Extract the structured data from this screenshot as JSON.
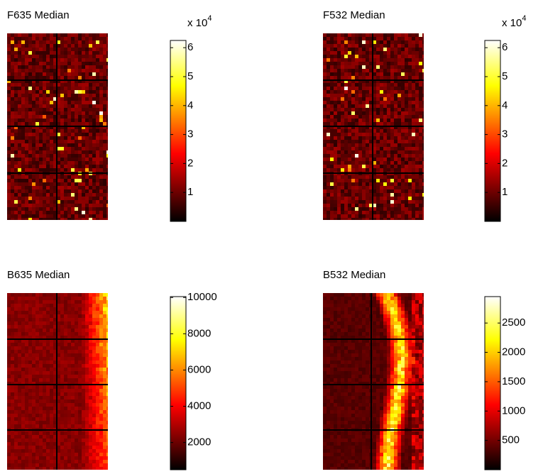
{
  "chart_data": [
    {
      "type": "heatmap",
      "title": "F635 Median",
      "colormap": "hot",
      "scale_text": "x 10",
      "scale_exponent": 4,
      "ylim": [
        0,
        6.25
      ],
      "yticks": [
        1,
        2,
        3,
        4,
        5,
        6
      ]
    },
    {
      "type": "heatmap",
      "title": "F532 Median",
      "colormap": "hot",
      "scale_text": "x 10",
      "scale_exponent": 4,
      "ylim": [
        0,
        6.25
      ],
      "yticks": [
        1,
        2,
        3,
        4,
        5,
        6
      ]
    },
    {
      "type": "heatmap",
      "title": "B635 Median",
      "colormap": "hot",
      "ylim": [
        500,
        10050
      ],
      "yticks": [
        2000,
        4000,
        6000,
        8000,
        10000
      ]
    },
    {
      "type": "heatmap",
      "title": "B532 Median",
      "colormap": "hot",
      "ylim": [
        0,
        2950
      ],
      "yticks": [
        500,
        1000,
        1500,
        2000,
        2500
      ]
    }
  ]
}
